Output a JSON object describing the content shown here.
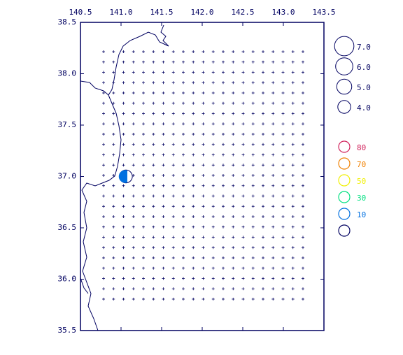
{
  "chart_data": {
    "type": "map",
    "xlim": [
      140.5,
      143.5
    ],
    "ylim": [
      35.5,
      38.5
    ],
    "xticks": [
      140.5,
      {
        "value": 141,
        "label": "141.0"
      },
      141.5,
      {
        "value": 142,
        "label": "142.0"
      },
      142.5,
      {
        "value": 143,
        "label": "143.0"
      },
      143.5
    ],
    "yticks": [
      35.5,
      {
        "value": 36,
        "label": "36.0"
      },
      36.5,
      {
        "value": 37,
        "label": "37.0"
      },
      37.5,
      {
        "value": 38,
        "label": "38.0"
      },
      38.5
    ],
    "magnitude_legend": [
      {
        "value": 7,
        "label": "7.0"
      },
      {
        "value": 6,
        "label": "6.0"
      },
      {
        "value": 5,
        "label": "5.0"
      },
      {
        "value": 4,
        "label": "4.0"
      }
    ],
    "depth_legend": [
      {
        "value": 80,
        "color": "#d0205a"
      },
      {
        "value": 70,
        "color": "#f08000"
      },
      {
        "value": 50,
        "color": "#f0f000"
      },
      {
        "value": 30,
        "color": "#00e080"
      },
      {
        "value": 10,
        "color": "#0070e0"
      },
      {
        "value": null,
        "color": "#000060"
      }
    ],
    "events": [
      {
        "lon": 141.06,
        "lat": 37.0,
        "mag": 4.0,
        "depth": 10
      }
    ]
  }
}
